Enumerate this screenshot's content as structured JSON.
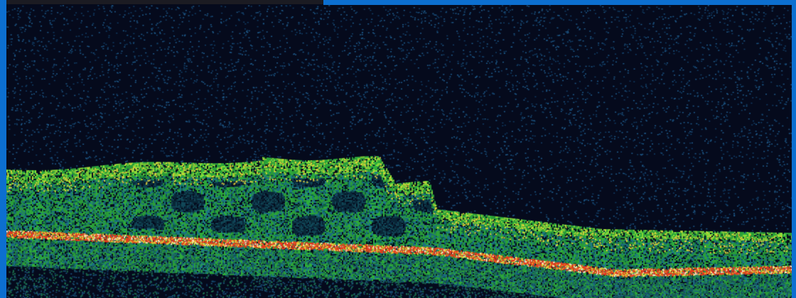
{
  "image": {
    "subject": "oct-retinal-cross-section",
    "colors": {
      "background": "#050a1c",
      "frame_blue": "#0c6fd0",
      "speckle": "#1f5a8a",
      "tissue_dark": "#0f6a4a",
      "tissue_green": "#2fae3c",
      "tissue_bright": "#8ee03a",
      "hot_yellow": "#e6d23a",
      "hot_red": "#e83a1c",
      "hot_white": "#ffe6c8"
    }
  }
}
